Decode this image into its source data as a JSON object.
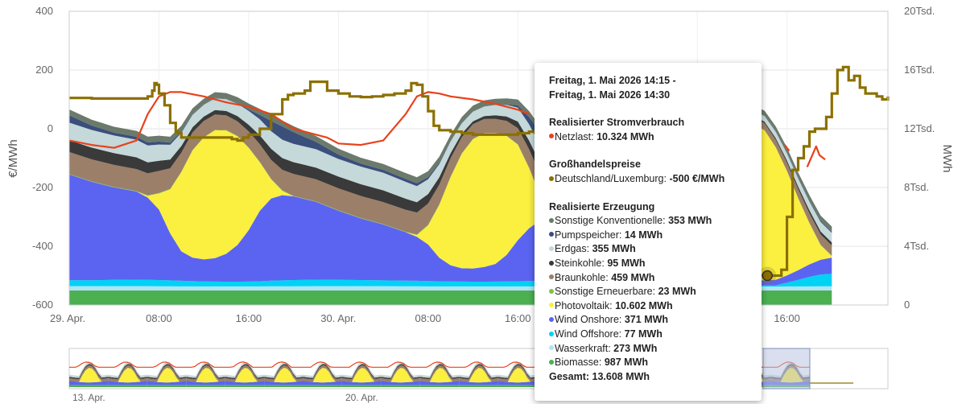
{
  "chart_data": {
    "type": "area",
    "y_left": {
      "title": "€/MWh",
      "range": [
        -600,
        400
      ],
      "ticks": [
        "400",
        "200",
        "0",
        "-200",
        "-400",
        "-600"
      ]
    },
    "y_right": {
      "title": "MWh",
      "range": [
        0,
        20000
      ],
      "ticks": [
        "20Tsd.",
        "16Tsd.",
        "12Tsd.",
        "8Tsd.",
        "4Tsd.",
        "0"
      ]
    },
    "x_axis": {
      "ticks": [
        "29. Apr.",
        "08:00",
        "16:00",
        "30. Apr.",
        "08:00",
        "16:00",
        "08:00",
        "16:00"
      ],
      "tick_hours": [
        0,
        8,
        16,
        24,
        32,
        40,
        56,
        64
      ],
      "range_hours": [
        0,
        73
      ]
    },
    "stack_order": [
      "Biomasse",
      "Wasserkraft",
      "Wind Offshore",
      "Wind Onshore",
      "Photovoltaik",
      "Sonstige Erneuerbare",
      "Braunkohle",
      "Steinkohle",
      "Erdgas",
      "Pumpspeicher",
      "Sonstige Konventionelle"
    ],
    "series_colors": {
      "Biomasse": "#4caf50",
      "Wasserkraft": "#aee4f5",
      "Wind Offshore": "#00d2f5",
      "Wind Onshore": "#5b64f0",
      "Photovoltaik": "#fbef40",
      "Sonstige Erneuerbare": "#7ec34a",
      "Braunkohle": "#9b7f68",
      "Steinkohle": "#3a3a3a",
      "Erdgas": "#c5d8da",
      "Pumpspeicher": "#3b4f7b",
      "Sonstige Konventionelle": "#6b7a6b",
      "Netzlast": "#e8421a",
      "Preis": "#8b7000"
    },
    "generation_hours": [
      0,
      2,
      4,
      6,
      7,
      8,
      9,
      10,
      11,
      12,
      13,
      14,
      15,
      16,
      17,
      18,
      19,
      20,
      22,
      24,
      26,
      28,
      30,
      31,
      32,
      33,
      34,
      35,
      36,
      37,
      38,
      39,
      40,
      41,
      42,
      44,
      46,
      48,
      50,
      52,
      54,
      55,
      56,
      57,
      58,
      59,
      60,
      61,
      62,
      63,
      64,
      65,
      66,
      67,
      68
    ],
    "generation_mwh": {
      "Biomasse": [
        987,
        987,
        987,
        987,
        987,
        987,
        987,
        987,
        987,
        987,
        987,
        987,
        987,
        987,
        987,
        987,
        987,
        987,
        987,
        987,
        987,
        987,
        987,
        987,
        987,
        987,
        987,
        987,
        987,
        987,
        987,
        987,
        987,
        987,
        987,
        987,
        987,
        987,
        987,
        987,
        987,
        987,
        987,
        987,
        987,
        987,
        987,
        987,
        987,
        987,
        987,
        987,
        987,
        987,
        987
      ],
      "Wasserkraft": [
        300,
        300,
        300,
        300,
        300,
        290,
        290,
        280,
        280,
        280,
        280,
        280,
        280,
        280,
        280,
        290,
        290,
        290,
        300,
        300,
        300,
        300,
        290,
        290,
        280,
        280,
        280,
        280,
        280,
        280,
        280,
        280,
        280,
        280,
        290,
        300,
        300,
        300,
        300,
        290,
        290,
        280,
        280,
        280,
        280,
        275,
        273,
        273,
        273,
        275,
        280,
        280,
        280,
        290,
        290
      ],
      "Wind Offshore": [
        400,
        400,
        420,
        440,
        430,
        420,
        400,
        380,
        360,
        340,
        330,
        320,
        320,
        330,
        350,
        380,
        400,
        420,
        440,
        430,
        410,
        390,
        380,
        370,
        360,
        350,
        340,
        330,
        320,
        320,
        330,
        340,
        350,
        360,
        380,
        380,
        360,
        320,
        250,
        180,
        150,
        140,
        130,
        120,
        110,
        100,
        90,
        80,
        77,
        80,
        250,
        450,
        650,
        800,
        850
      ],
      "Wind Onshore": [
        7200,
        6700,
        6300,
        6000,
        5600,
        4800,
        3200,
        2000,
        1600,
        1500,
        1600,
        1900,
        2500,
        3500,
        4800,
        5600,
        5800,
        5700,
        5300,
        4700,
        4200,
        3800,
        3300,
        3000,
        2500,
        1600,
        1100,
        900,
        900,
        1000,
        1200,
        1800,
        2800,
        3600,
        4100,
        4000,
        3600,
        3000,
        2300,
        1700,
        1200,
        1000,
        700,
        500,
        380,
        371,
        371,
        360,
        350,
        380,
        500,
        650,
        850,
        1000,
        1100
      ],
      "Photovoltaik": [
        0,
        0,
        0,
        0,
        120,
        1100,
        3000,
        5400,
        7300,
        8300,
        8700,
        8400,
        7400,
        5600,
        3300,
        1300,
        300,
        0,
        0,
        0,
        0,
        0,
        0,
        120,
        1300,
        3600,
        6000,
        7800,
        8800,
        9100,
        8900,
        8100,
        6500,
        4100,
        1700,
        100,
        0,
        0,
        0,
        0,
        0,
        120,
        1300,
        3600,
        6300,
        8500,
        10300,
        10602,
        10200,
        9000,
        7100,
        4900,
        2800,
        1000,
        100
      ],
      "Sonstige Erneuerbare": [
        30,
        30,
        30,
        30,
        30,
        30,
        30,
        30,
        25,
        25,
        25,
        25,
        25,
        25,
        30,
        30,
        30,
        30,
        30,
        30,
        30,
        30,
        30,
        30,
        30,
        30,
        25,
        25,
        25,
        25,
        25,
        25,
        25,
        30,
        30,
        30,
        30,
        30,
        30,
        30,
        30,
        30,
        30,
        25,
        25,
        25,
        23,
        23,
        23,
        25,
        25,
        25,
        30,
        30,
        30
      ],
      "Braunkohle": [
        1500,
        1500,
        1500,
        1500,
        1500,
        1500,
        1400,
        1300,
        1200,
        1100,
        1050,
        1000,
        1000,
        1100,
        1200,
        1300,
        1400,
        1500,
        1500,
        1500,
        1500,
        1500,
        1500,
        1500,
        1450,
        1350,
        1250,
        1100,
        1000,
        950,
        950,
        1000,
        1100,
        1250,
        1400,
        1500,
        1600,
        1600,
        1500,
        1400,
        1200,
        1000,
        850,
        700,
        600,
        500,
        459,
        459,
        470,
        500,
        550,
        600,
        650,
        700,
        700
      ],
      "Steinkohle": [
        800,
        800,
        800,
        800,
        750,
        700,
        600,
        450,
        350,
        300,
        300,
        300,
        350,
        450,
        600,
        750,
        800,
        800,
        800,
        800,
        800,
        800,
        750,
        700,
        650,
        500,
        350,
        250,
        200,
        200,
        250,
        300,
        450,
        600,
        750,
        800,
        800,
        800,
        750,
        700,
        600,
        500,
        350,
        200,
        120,
        100,
        95,
        95,
        100,
        120,
        150,
        180,
        200,
        200,
        200
      ],
      "Erdgas": [
        1200,
        1200,
        1200,
        1200,
        1150,
        1100,
        1000,
        900,
        850,
        800,
        800,
        800,
        850,
        950,
        1100,
        1200,
        1250,
        1250,
        1250,
        1200,
        1200,
        1200,
        1150,
        1100,
        1000,
        900,
        800,
        700,
        650,
        650,
        700,
        800,
        950,
        1100,
        1200,
        1250,
        1250,
        1250,
        1200,
        1100,
        950,
        800,
        650,
        500,
        420,
        380,
        355,
        355,
        380,
        420,
        480,
        540,
        600,
        650,
        650
      ],
      "Pumpspeicher": [
        500,
        300,
        200,
        200,
        200,
        200,
        150,
        80,
        40,
        20,
        20,
        20,
        40,
        100,
        300,
        700,
        900,
        800,
        500,
        300,
        200,
        200,
        200,
        200,
        150,
        100,
        40,
        20,
        15,
        15,
        20,
        40,
        150,
        500,
        900,
        800,
        500,
        300,
        200,
        150,
        100,
        60,
        40,
        20,
        15,
        14,
        14,
        14,
        15,
        20,
        40,
        60,
        80,
        80,
        80
      ],
      "Sonstige Konventionelle": [
        400,
        400,
        400,
        400,
        400,
        400,
        400,
        400,
        400,
        400,
        400,
        400,
        400,
        400,
        400,
        400,
        400,
        400,
        400,
        400,
        400,
        400,
        400,
        400,
        400,
        400,
        400,
        400,
        400,
        400,
        400,
        400,
        400,
        400,
        400,
        400,
        400,
        400,
        400,
        380,
        370,
        360,
        355,
        353,
        353,
        353,
        353,
        353,
        353,
        353,
        353,
        353,
        353,
        353,
        353
      ]
    },
    "netzlast_hours": [
      0,
      2,
      4,
      6,
      7,
      8,
      9,
      10,
      12,
      14,
      16,
      18,
      20,
      22,
      23,
      24,
      26,
      28,
      30,
      31,
      32,
      33,
      34,
      36,
      38,
      40,
      41
    ],
    "netzlast_mwh": [
      11200,
      10900,
      10700,
      11200,
      13000,
      14200,
      14500,
      14500,
      14200,
      13800,
      13500,
      13000,
      12000,
      11600,
      11400,
      11000,
      10900,
      11200,
      13000,
      14200,
      14500,
      14400,
      14200,
      14000,
      13700,
      13300,
      13000
    ],
    "netzlast_fragments": [
      {
        "hours": [
          63.8,
          64.2
        ],
        "mwh": [
          10900,
          10500
        ]
      },
      {
        "hours": [
          65.8,
          66.6,
          66.9,
          67.4
        ],
        "mwh": [
          9400,
          10800,
          10200,
          9900
        ]
      }
    ],
    "preis_hours": [
      0,
      2,
      4,
      6,
      7,
      7.4,
      7.6,
      7.8,
      8,
      8.5,
      9,
      9.5,
      9.7,
      10,
      10.5,
      11,
      11.5,
      12,
      12.5,
      13,
      13.5,
      14,
      14.5,
      15,
      15.5,
      16,
      17,
      18,
      19,
      19.5,
      20,
      21,
      21.5,
      22,
      23,
      24,
      25,
      26,
      27,
      28,
      29,
      30,
      30.5,
      31,
      31.5,
      32,
      32.5,
      33,
      34,
      35,
      36,
      37,
      38,
      39,
      40,
      41,
      42,
      43,
      44,
      44.2,
      44.5,
      60,
      61,
      61.5,
      62,
      62.5,
      63,
      63.5,
      64,
      64.5,
      65,
      65.5,
      66,
      66.5,
      67,
      67.5,
      68,
      68.5,
      69,
      69.5,
      70,
      70.5,
      71,
      71.5,
      72,
      72.5,
      73
    ],
    "preis_eur_mwh": [
      105,
      103,
      103,
      103,
      110,
      130,
      155,
      150,
      120,
      80,
      20,
      -10,
      -15,
      -30,
      -30,
      -30,
      -30,
      -30,
      -30,
      -30,
      -30,
      -30,
      -35,
      -40,
      -30,
      -20,
      0,
      50,
      100,
      115,
      120,
      130,
      160,
      160,
      130,
      120,
      110,
      108,
      110,
      115,
      120,
      130,
      155,
      150,
      110,
      60,
      10,
      -5,
      -10,
      -15,
      -20,
      -20,
      -20,
      -20,
      -15,
      -10,
      -10,
      -15,
      -20,
      -20,
      -20,
      -500,
      -500,
      -500,
      -500,
      -500,
      -500,
      -480,
      -300,
      -140,
      -100,
      -60,
      -10,
      0,
      0,
      40,
      120,
      200,
      210,
      165,
      180,
      140,
      120,
      120,
      110,
      100,
      110
    ],
    "highlight": {
      "hour": 62.25,
      "price": -500
    }
  },
  "navigator": {
    "ticks": [
      "13. Apr.",
      "20. Apr."
    ]
  },
  "tooltip": {
    "title_line1": "Freitag, 1. Mai 2026 14:15 -",
    "title_line2": "Freitag, 1. Mai 2026 14:30",
    "section_consumption": "Realisierter Stromverbrauch",
    "consumption_rows": [
      {
        "label": "Netzlast",
        "value": "10.324 MWh",
        "color": "#e8421a"
      }
    ],
    "section_prices": "Großhandelspreise",
    "price_rows": [
      {
        "label": "Deutschland/Luxemburg",
        "value": "-500 €/MWh",
        "color": "#8b7000"
      }
    ],
    "section_generation": "Realisierte Erzeugung",
    "generation_rows": [
      {
        "label": "Sonstige Konventionelle",
        "value": "353 MWh",
        "color": "#6b7a6b"
      },
      {
        "label": "Pumpspeicher",
        "value": "14 MWh",
        "color": "#3b4f7b"
      },
      {
        "label": "Erdgas",
        "value": "355 MWh",
        "color": "#c5d8da"
      },
      {
        "label": "Steinkohle",
        "value": "95 MWh",
        "color": "#3a3a3a"
      },
      {
        "label": "Braunkohle",
        "value": "459 MWh",
        "color": "#9b7f68"
      },
      {
        "label": "Sonstige Erneuerbare",
        "value": "23 MWh",
        "color": "#7ec34a"
      },
      {
        "label": "Photovoltaik",
        "value": "10.602 MWh",
        "color": "#fbef40"
      },
      {
        "label": "Wind Onshore",
        "value": "371 MWh",
        "color": "#5b64f0"
      },
      {
        "label": "Wind Offshore",
        "value": "77 MWh",
        "color": "#00d2f5"
      },
      {
        "label": "Wasserkraft",
        "value": "273 MWh",
        "color": "#aee4f5"
      },
      {
        "label": "Biomasse",
        "value": "987 MWh",
        "color": "#4caf50"
      }
    ],
    "total": "Gesamt: 13.608 MWh"
  }
}
